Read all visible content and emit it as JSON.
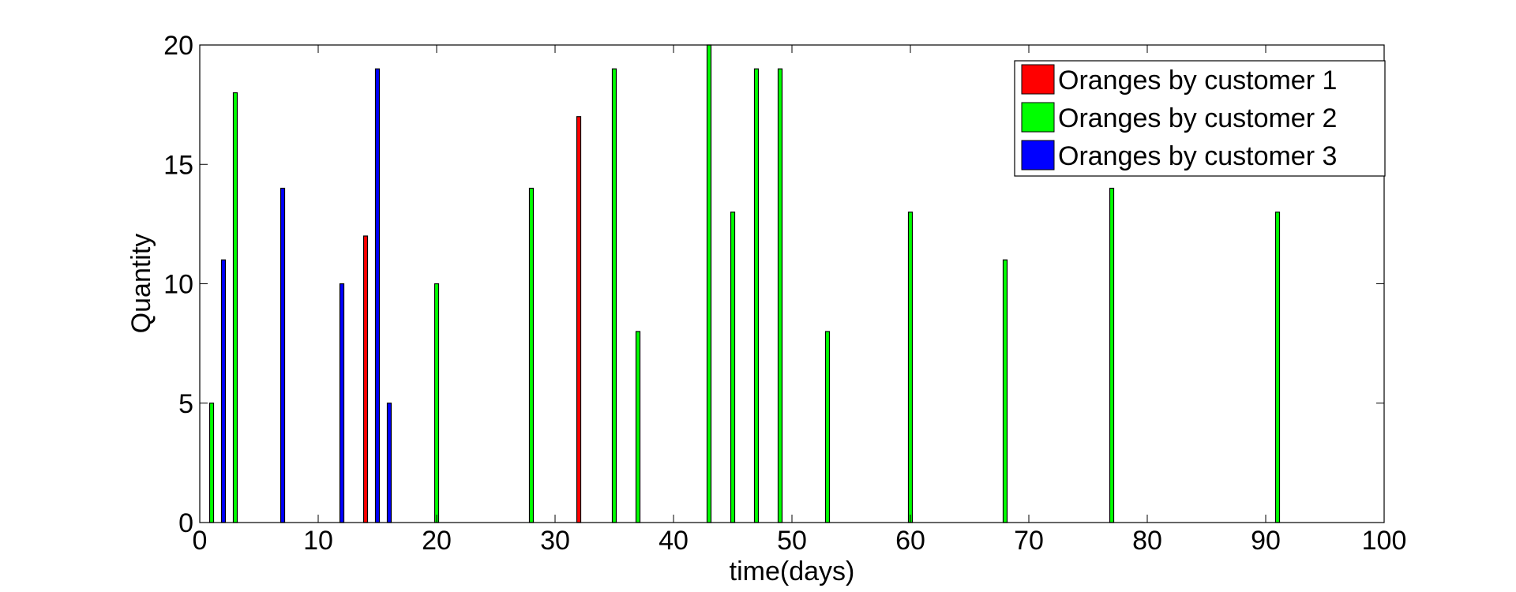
{
  "chart_data": {
    "type": "bar",
    "title": "",
    "xlabel": "time(days)",
    "ylabel": "Quantity",
    "xlim": [
      0,
      100
    ],
    "ylim": [
      0,
      20
    ],
    "xticks": [
      0,
      10,
      20,
      30,
      40,
      50,
      60,
      70,
      80,
      90,
      100
    ],
    "yticks": [
      0,
      5,
      10,
      15,
      20
    ],
    "grid": false,
    "legend_position": "top-right",
    "series": [
      {
        "name": "Oranges by customer 1",
        "color": "#ff0000",
        "points": [
          {
            "x": 14,
            "y": 12
          },
          {
            "x": 32,
            "y": 17
          }
        ]
      },
      {
        "name": "Oranges by customer 2",
        "color": "#00ff00",
        "points": [
          {
            "x": 1,
            "y": 5
          },
          {
            "x": 3,
            "y": 18
          },
          {
            "x": 20,
            "y": 10
          },
          {
            "x": 28,
            "y": 14
          },
          {
            "x": 35,
            "y": 19
          },
          {
            "x": 37,
            "y": 8
          },
          {
            "x": 43,
            "y": 20
          },
          {
            "x": 45,
            "y": 13
          },
          {
            "x": 47,
            "y": 19
          },
          {
            "x": 49,
            "y": 19
          },
          {
            "x": 53,
            "y": 8
          },
          {
            "x": 60,
            "y": 13
          },
          {
            "x": 68,
            "y": 11
          },
          {
            "x": 77,
            "y": 14
          },
          {
            "x": 91,
            "y": 13
          }
        ]
      },
      {
        "name": "Oranges by customer 3",
        "color": "#0000ff",
        "points": [
          {
            "x": 2,
            "y": 11
          },
          {
            "x": 7,
            "y": 14
          },
          {
            "x": 12,
            "y": 10
          },
          {
            "x": 15,
            "y": 19
          },
          {
            "x": 16,
            "y": 5
          }
        ]
      }
    ]
  }
}
